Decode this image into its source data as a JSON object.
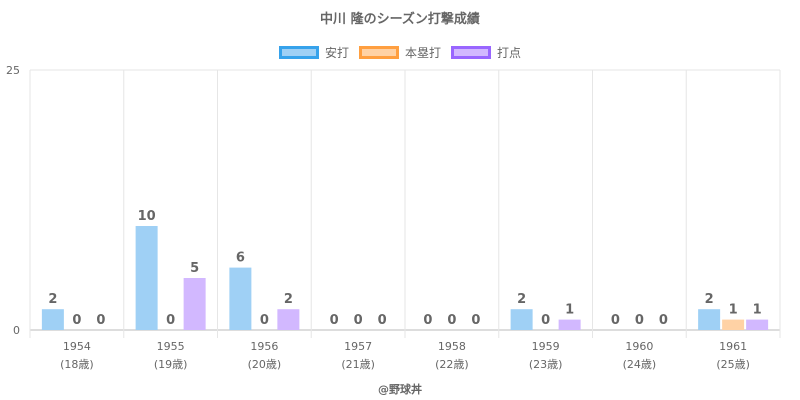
{
  "chart_data": {
    "type": "bar",
    "title": "中川 隆のシーズン打撃成績",
    "categories": [
      "1954",
      "1955",
      "1956",
      "1957",
      "1958",
      "1959",
      "1960",
      "1961"
    ],
    "category_sublabels": [
      "(18歳)",
      "(19歳)",
      "(20歳)",
      "(21歳)",
      "(22歳)",
      "(23歳)",
      "(24歳)",
      "(25歳)"
    ],
    "series": [
      {
        "name": "安打",
        "color": "#9fd0f5",
        "border": "#36a2eb",
        "values": [
          2,
          10,
          6,
          0,
          0,
          2,
          0,
          2
        ]
      },
      {
        "name": "本塁打",
        "color": "#ffd2a5",
        "border": "#ff9f40",
        "values": [
          0,
          0,
          0,
          0,
          0,
          0,
          0,
          1
        ]
      },
      {
        "name": "打点",
        "color": "#d2b8ff",
        "border": "#9966ff",
        "values": [
          0,
          5,
          2,
          0,
          0,
          1,
          0,
          1
        ]
      }
    ],
    "ylim": [
      0,
      25
    ],
    "y_ticks": [
      "0",
      "25"
    ],
    "grid": true,
    "legend_position": "top",
    "credit": "@野球丼"
  }
}
